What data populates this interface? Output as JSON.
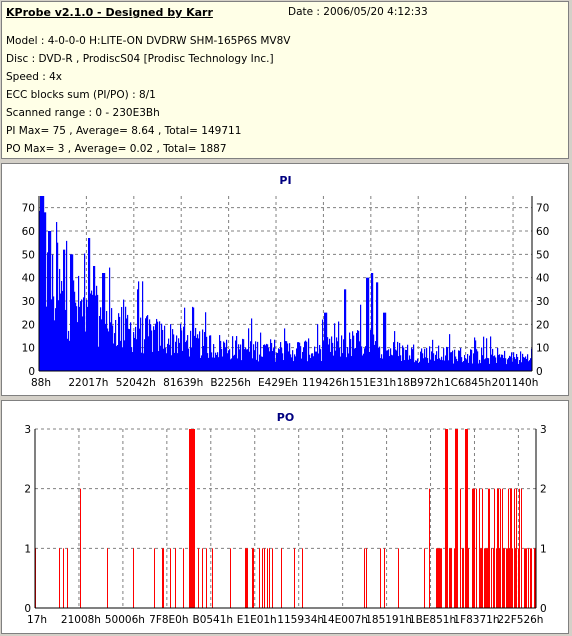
{
  "info": {
    "title": "KProbe v2.1.0 - Designed by Karr",
    "date": "Date : 2006/05/20 4:12:33",
    "model": "Model : 4-0-0-0 H:LITE-ON DVDRW SHM-165P6S MV8V",
    "disc": "Disc : DVD-R , ProdiscS04   [Prodisc Technology Inc.]",
    "speed": "Speed : 4x",
    "ecc": "ECC blocks sum (PI/PO) : 8/1",
    "range": "Scanned range : 0 - 230E3Bh",
    "pi_stats": "PI Max= 75 , Average= 8.64 , Total= 149711",
    "po_stats": "PO Max= 3 , Average= 0.02 , Total= 1887"
  },
  "colors": {
    "pi": "#0000ff",
    "po": "#ff0000",
    "title": "#000080",
    "grid": "#808080"
  },
  "chart_data": [
    {
      "type": "bar",
      "title": "PI",
      "ylim": [
        0,
        75
      ],
      "yticks": [
        0,
        10,
        20,
        30,
        40,
        50,
        60,
        70
      ],
      "xticks": [
        "88h",
        "22017h",
        "52042h",
        "81639h",
        "B2256h",
        "E429Eh",
        "119426h",
        "151E31h",
        "18B972h",
        "1C6845h",
        "201140h"
      ],
      "grid": true,
      "profile": [
        [
          0,
          65
        ],
        [
          0.01,
          45
        ],
        [
          0.03,
          38
        ],
        [
          0.06,
          32
        ],
        [
          0.1,
          28
        ],
        [
          0.15,
          22
        ],
        [
          0.2,
          18
        ],
        [
          0.25,
          16
        ],
        [
          0.3,
          14
        ],
        [
          0.35,
          12
        ],
        [
          0.4,
          11
        ],
        [
          0.45,
          10
        ],
        [
          0.5,
          10
        ],
        [
          0.55,
          10
        ],
        [
          0.6,
          11
        ],
        [
          0.64,
          13
        ],
        [
          0.66,
          14
        ],
        [
          0.7,
          10
        ],
        [
          0.75,
          9
        ],
        [
          0.8,
          8
        ],
        [
          0.9,
          7
        ],
        [
          1.0,
          6
        ]
      ],
      "peaks": [
        [
          0.006,
          75
        ],
        [
          0.01,
          68
        ],
        [
          0.02,
          60
        ],
        [
          0.035,
          55
        ],
        [
          0.05,
          52
        ],
        [
          0.065,
          50
        ],
        [
          0.1,
          57
        ],
        [
          0.11,
          45
        ],
        [
          0.13,
          42
        ],
        [
          0.2,
          35
        ],
        [
          0.62,
          35
        ],
        [
          0.665,
          40
        ],
        [
          0.675,
          42
        ],
        [
          0.685,
          38
        ],
        [
          0.7,
          25
        ],
        [
          0.58,
          25
        ]
      ]
    },
    {
      "type": "bar",
      "title": "PO",
      "ylim": [
        0,
        3
      ],
      "yticks": [
        0,
        1,
        2,
        3
      ],
      "xticks": [
        "17h",
        "21008h",
        "50006h",
        "7F8E0h",
        "B0541h",
        "E1E01h",
        "115934h",
        "14E007h",
        "185191h",
        "1BE851h",
        "1F8371h",
        "22F526h"
      ],
      "grid": true,
      "peaks": [
        [
          0.31,
          3
        ],
        [
          0.312,
          3
        ],
        [
          0.315,
          3
        ],
        [
          0.82,
          3
        ],
        [
          0.84,
          3
        ],
        [
          0.86,
          3
        ]
      ],
      "twos": [
        [
          0.01,
          0.02
        ],
        [
          0.08,
          0.09
        ],
        [
          0.16,
          0.17
        ],
        [
          0.3,
          0.33
        ],
        [
          0.78,
          0.8
        ],
        [
          0.83,
          0.98
        ]
      ],
      "dense_start": 0.8
    }
  ]
}
